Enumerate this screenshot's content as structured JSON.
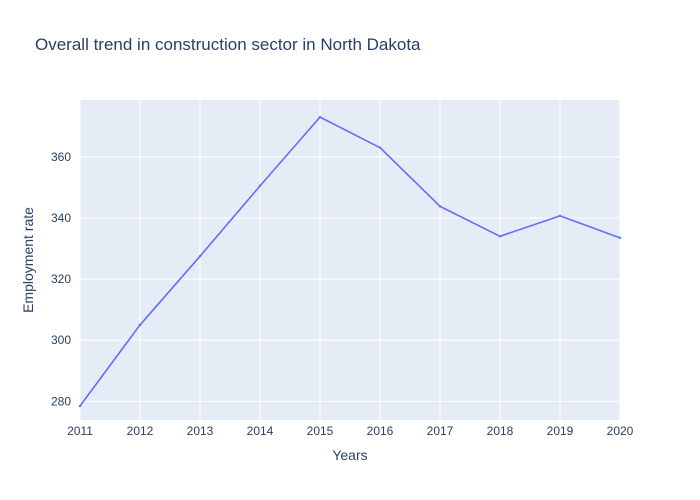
{
  "chart_data": {
    "type": "line",
    "title": "Overall trend in construction sector in North Dakota",
    "xlabel": "Years",
    "ylabel": "Employment rate",
    "x": [
      2011,
      2012,
      2013,
      2014,
      2015,
      2016,
      2017,
      2018,
      2019,
      2020
    ],
    "series": [
      {
        "name": "",
        "values": [
          278.5,
          305.0,
          327.5,
          350.5,
          373.0,
          363.0,
          343.8,
          334.0,
          340.7,
          333.5
        ]
      }
    ],
    "xlim": [
      2011,
      2020
    ],
    "ylim": [
      273.9,
      378.6
    ],
    "x_ticks": [
      "2011",
      "2012",
      "2013",
      "2014",
      "2015",
      "2016",
      "2017",
      "2018",
      "2019",
      "2020"
    ],
    "y_ticks": [
      "280",
      "300",
      "320",
      "340",
      "360"
    ],
    "grid": true,
    "legend": "none",
    "colors": {
      "line": "#636efa",
      "plot_background": "#e5ecf6",
      "grid": "#ffffff",
      "text": "#2a3f5f"
    }
  }
}
